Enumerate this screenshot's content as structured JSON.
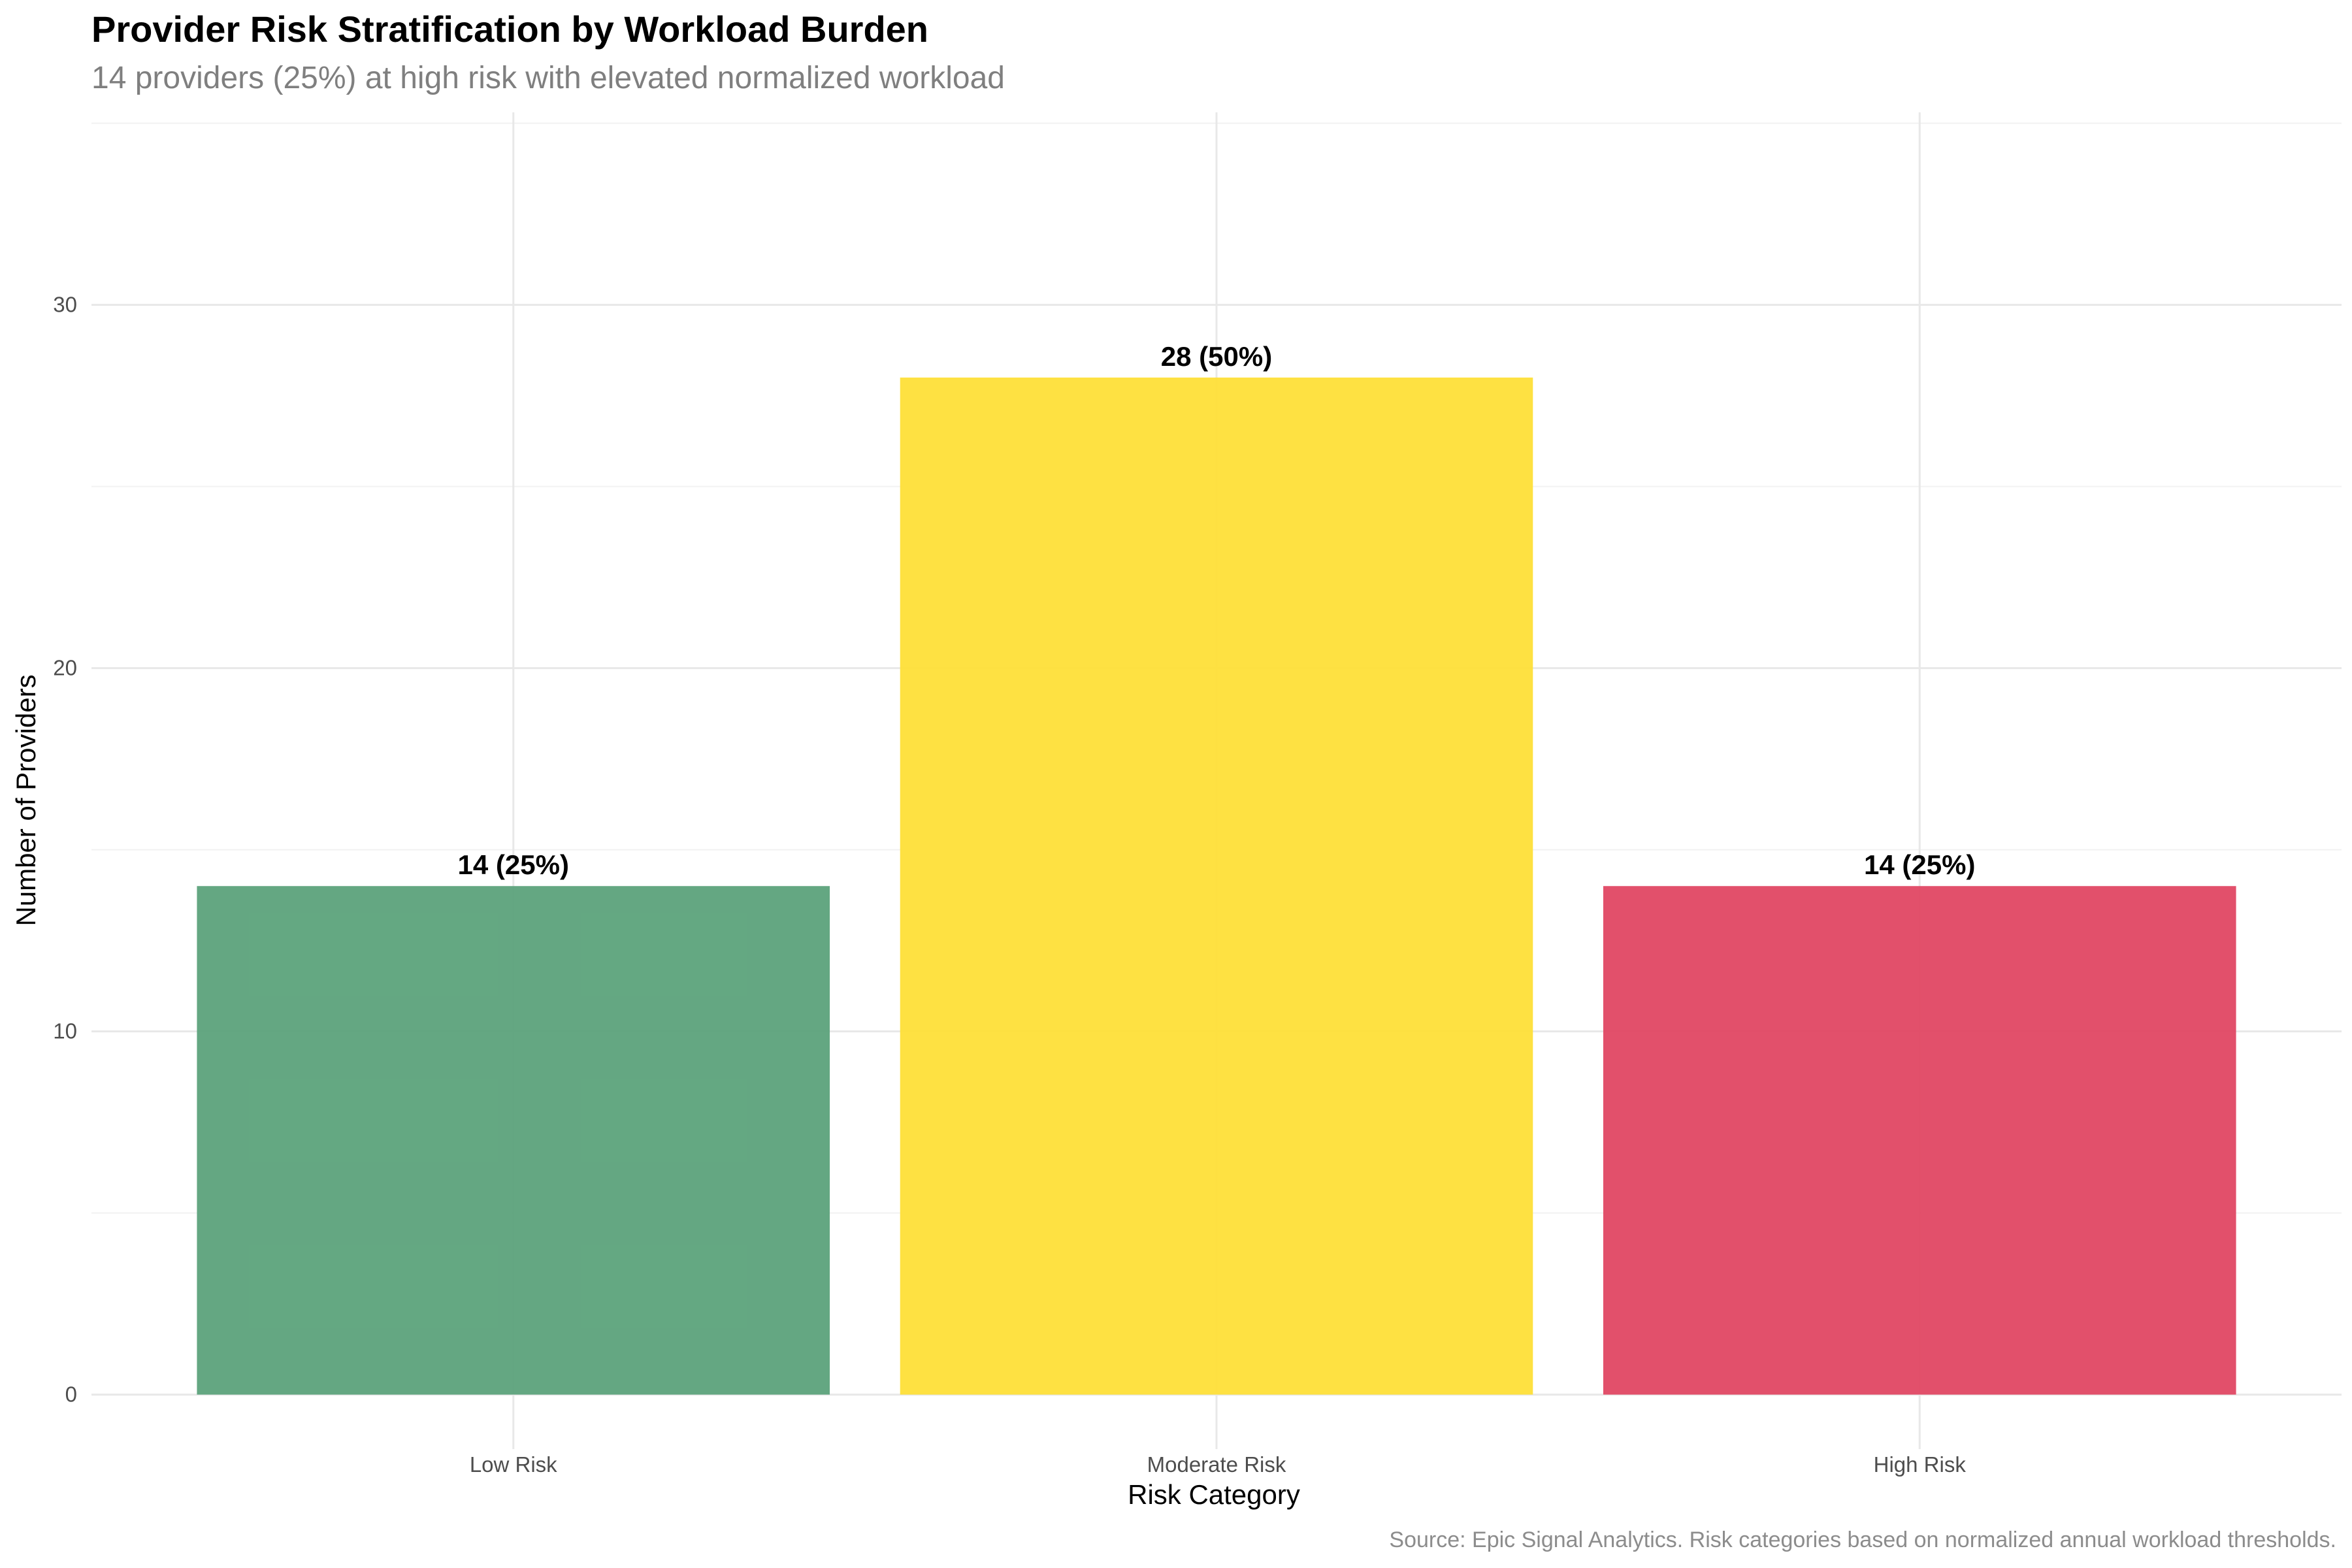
{
  "chart_data": {
    "type": "bar",
    "title": "Provider Risk Stratification by Workload Burden",
    "subtitle": "14 providers (25%) at high risk with elevated normalized workload",
    "caption": "Source: Epic Signal Analytics. Risk categories based on normalized annual workload thresholds.",
    "xlabel": "Risk Category",
    "ylabel": "Number of Providers",
    "categories": [
      "Low Risk",
      "Moderate Risk",
      "High Risk"
    ],
    "values": [
      14,
      28,
      14
    ],
    "data_labels": [
      "14 (25%)",
      "28 (50%)",
      "14 (25%)"
    ],
    "colors": [
      "#5aa27a",
      "#fedf36",
      "#e04562"
    ],
    "ylim": [
      -1.5,
      35.3
    ],
    "yticks": [
      0,
      10,
      20,
      30
    ],
    "ytick_labels": [
      "0",
      "10",
      "20",
      "30"
    ],
    "grid": true,
    "legend": "none"
  }
}
